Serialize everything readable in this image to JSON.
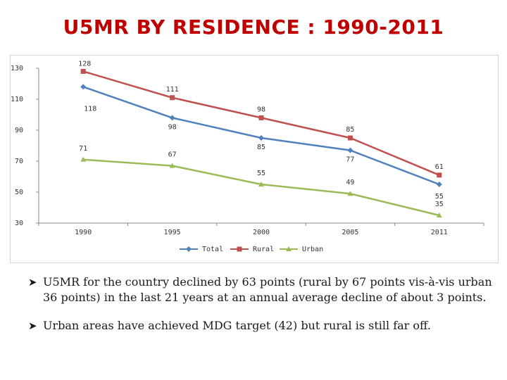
{
  "slide": {
    "title": "U5MR BY RESIDENCE : 1990-2011",
    "bullets": [
      "U5MR for the country declined by 63 points (rural by 67 points vis-à-vis urban 36 points) in the last 21 years at an annual average decline of about 3 points.",
      "Urban areas have achieved MDG target (42) but rural is still far off."
    ],
    "bullet_icon": "arrow-bullet-icon"
  },
  "chart_data": {
    "type": "line",
    "title": "",
    "xlabel": "",
    "ylabel": "",
    "categories": [
      "1990",
      "1995",
      "2000",
      "2005",
      "2011"
    ],
    "ylim": [
      30,
      130
    ],
    "yticks": [
      30,
      50,
      70,
      90,
      110,
      130
    ],
    "grid": false,
    "legend": "bottom",
    "series": [
      {
        "name": "Total",
        "values": [
          118,
          98,
          85,
          77,
          55
        ],
        "color": "#4f81bd",
        "marker": "diamond"
      },
      {
        "name": "Rural",
        "values": [
          128,
          111,
          98,
          85,
          61
        ],
        "color": "#c0504d",
        "marker": "square"
      },
      {
        "name": "Urban",
        "values": [
          71,
          67,
          55,
          49,
          35
        ],
        "color": "#9bbb59",
        "marker": "triangle"
      }
    ]
  }
}
